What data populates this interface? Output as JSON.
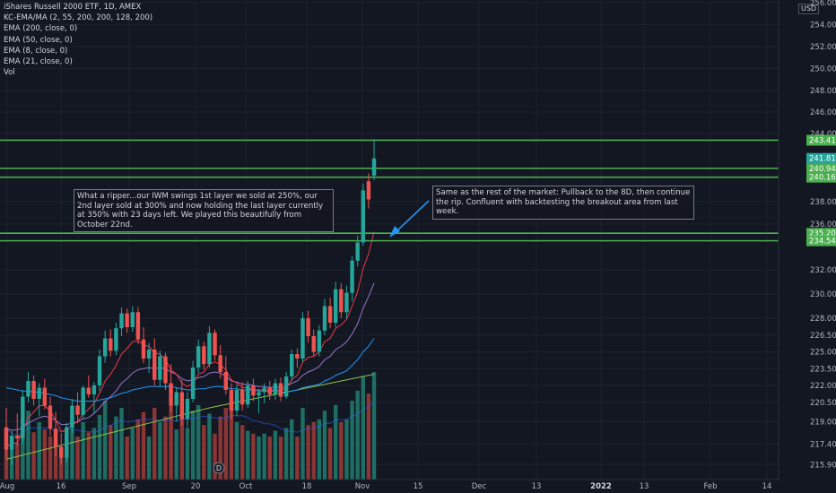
{
  "header": {
    "title": "iShares Russell 2000 ETF, 1D, AMEX",
    "indicators": [
      "KC-EMA/MA (2, 55, 200, 200, 128, 200)",
      "EMA (200, close, 0)",
      "EMA (50, close, 0)",
      "EMA (8, close, 0)",
      "EMA (21, close, 0)",
      "Vol"
    ],
    "currency": "USD"
  },
  "annotations": {
    "note1": "What a ripper...our IWM swings 1st layer we sold at 250%, our 2nd layer sold at 300% and now holding the last layer currently at 350% with 23 days left. We played this beautifully from October 22nd.",
    "note2": "Same as the rest of the market: Pullback to the 8D, then continue the rip. Confluent with backtesting the breakout area from last week."
  },
  "chart_data": {
    "type": "candlestick",
    "y_ticks": [
      "256.00",
      "254.00",
      "252.00",
      "250.00",
      "248.00",
      "246.00",
      "244.00",
      "238.00",
      "236.00",
      "232.00",
      "230.00",
      "228.00",
      "226.50",
      "225.00",
      "223.50",
      "222.00",
      "220.50",
      "219.00",
      "217.40",
      "215.90"
    ],
    "y_tick_values": [
      256.0,
      254.0,
      252.0,
      250.0,
      248.0,
      246.0,
      244.0,
      238.0,
      236.0,
      232.0,
      230.0,
      228.0,
      226.5,
      225.0,
      223.5,
      222.0,
      220.5,
      219.0,
      217.4,
      215.9
    ],
    "x_ticks": [
      "Aug",
      "16",
      "Sep",
      "20",
      "Oct",
      "18",
      "Nov",
      "15",
      "Dec",
      "13",
      "2022",
      "13",
      "Feb",
      "14"
    ],
    "x_ticks_bold": [
      "2022"
    ],
    "horizontal_levels": [
      {
        "label": "243.41",
        "value": 243.41
      },
      {
        "label": "240.94",
        "value": 240.94
      },
      {
        "label": "240.16",
        "value": 240.16
      },
      {
        "label": "235.20",
        "value": 235.2
      },
      {
        "label": "234.54",
        "value": 234.54
      }
    ],
    "last_price": {
      "label": "241.81",
      "value": 241.81
    },
    "dividend_marker": "D",
    "colors": {
      "up": "#26a69a",
      "down": "#ef5350",
      "level": "#4caf50",
      "ema8": "#f23645",
      "ema21": "#9575cd",
      "ema50": "#2196f3",
      "ema200": "#8bc34a",
      "vol_up": "#1e6e63",
      "vol_down": "#8b3535"
    },
    "candles": [
      {
        "o": 218.6,
        "h": 220.0,
        "l": 216.4,
        "c": 217.0
      },
      {
        "o": 217.0,
        "h": 218.4,
        "l": 215.9,
        "c": 218.0
      },
      {
        "o": 218.0,
        "h": 219.6,
        "l": 217.3,
        "c": 217.8
      },
      {
        "o": 217.8,
        "h": 221.6,
        "l": 217.4,
        "c": 221.0
      },
      {
        "o": 221.0,
        "h": 223.2,
        "l": 220.5,
        "c": 222.4
      },
      {
        "o": 222.4,
        "h": 222.9,
        "l": 220.2,
        "c": 220.8
      },
      {
        "o": 220.8,
        "h": 222.2,
        "l": 219.4,
        "c": 221.8
      },
      {
        "o": 221.8,
        "h": 222.6,
        "l": 219.9,
        "c": 220.2
      },
      {
        "o": 220.2,
        "h": 221.0,
        "l": 218.0,
        "c": 218.5
      },
      {
        "o": 218.5,
        "h": 219.7,
        "l": 216.5,
        "c": 217.2
      },
      {
        "o": 217.2,
        "h": 218.2,
        "l": 215.9,
        "c": 216.4
      },
      {
        "o": 216.4,
        "h": 218.9,
        "l": 216.1,
        "c": 218.6
      },
      {
        "o": 218.6,
        "h": 220.8,
        "l": 218.2,
        "c": 220.2
      },
      {
        "o": 220.2,
        "h": 221.4,
        "l": 218.9,
        "c": 219.5
      },
      {
        "o": 219.5,
        "h": 222.0,
        "l": 219.2,
        "c": 221.8
      },
      {
        "o": 221.8,
        "h": 222.9,
        "l": 220.9,
        "c": 221.2
      },
      {
        "o": 221.2,
        "h": 222.3,
        "l": 219.6,
        "c": 222.0
      },
      {
        "o": 222.0,
        "h": 225.2,
        "l": 221.5,
        "c": 224.6
      },
      {
        "o": 224.6,
        "h": 226.9,
        "l": 224.0,
        "c": 226.2
      },
      {
        "o": 226.2,
        "h": 227.0,
        "l": 224.6,
        "c": 225.1
      },
      {
        "o": 225.1,
        "h": 227.6,
        "l": 224.7,
        "c": 227.1
      },
      {
        "o": 227.1,
        "h": 228.9,
        "l": 226.4,
        "c": 228.4
      },
      {
        "o": 228.4,
        "h": 228.8,
        "l": 226.7,
        "c": 227.2
      },
      {
        "o": 227.2,
        "h": 229.0,
        "l": 226.8,
        "c": 228.5
      },
      {
        "o": 228.5,
        "h": 228.9,
        "l": 225.7,
        "c": 226.1
      },
      {
        "o": 226.1,
        "h": 227.2,
        "l": 224.0,
        "c": 224.4
      },
      {
        "o": 224.4,
        "h": 225.8,
        "l": 223.1,
        "c": 225.2
      },
      {
        "o": 225.2,
        "h": 226.2,
        "l": 222.0,
        "c": 222.5
      },
      {
        "o": 222.5,
        "h": 225.1,
        "l": 221.9,
        "c": 224.6
      },
      {
        "o": 224.6,
        "h": 224.9,
        "l": 221.6,
        "c": 222.2
      },
      {
        "o": 222.2,
        "h": 223.9,
        "l": 219.7,
        "c": 220.2
      },
      {
        "o": 220.2,
        "h": 221.8,
        "l": 219.0,
        "c": 221.4
      },
      {
        "o": 221.4,
        "h": 222.5,
        "l": 218.7,
        "c": 219.2
      },
      {
        "o": 219.2,
        "h": 221.4,
        "l": 218.6,
        "c": 220.8
      },
      {
        "o": 220.8,
        "h": 224.2,
        "l": 220.5,
        "c": 223.6
      },
      {
        "o": 223.6,
        "h": 226.1,
        "l": 223.1,
        "c": 225.5
      },
      {
        "o": 225.5,
        "h": 225.9,
        "l": 223.4,
        "c": 223.9
      },
      {
        "o": 223.9,
        "h": 227.3,
        "l": 223.6,
        "c": 226.7
      },
      {
        "o": 226.7,
        "h": 227.0,
        "l": 224.2,
        "c": 224.7
      },
      {
        "o": 224.7,
        "h": 225.6,
        "l": 222.6,
        "c": 223.2
      },
      {
        "o": 223.2,
        "h": 224.6,
        "l": 221.2,
        "c": 221.6
      },
      {
        "o": 221.6,
        "h": 222.2,
        "l": 219.2,
        "c": 219.8
      },
      {
        "o": 219.8,
        "h": 222.1,
        "l": 219.4,
        "c": 221.6
      },
      {
        "o": 221.6,
        "h": 222.3,
        "l": 219.8,
        "c": 220.3
      },
      {
        "o": 220.3,
        "h": 222.4,
        "l": 220.0,
        "c": 222.0
      },
      {
        "o": 222.0,
        "h": 222.6,
        "l": 220.6,
        "c": 221.1
      },
      {
        "o": 221.1,
        "h": 221.7,
        "l": 219.6,
        "c": 221.4
      },
      {
        "o": 221.4,
        "h": 222.2,
        "l": 220.4,
        "c": 221.8
      },
      {
        "o": 221.8,
        "h": 222.4,
        "l": 220.7,
        "c": 221.2
      },
      {
        "o": 221.2,
        "h": 222.6,
        "l": 220.7,
        "c": 222.2
      },
      {
        "o": 222.2,
        "h": 222.7,
        "l": 220.6,
        "c": 221.0
      },
      {
        "o": 221.0,
        "h": 223.2,
        "l": 220.8,
        "c": 222.8
      },
      {
        "o": 222.8,
        "h": 225.2,
        "l": 222.4,
        "c": 224.8
      },
      {
        "o": 224.8,
        "h": 225.3,
        "l": 223.6,
        "c": 224.4
      },
      {
        "o": 224.4,
        "h": 228.5,
        "l": 224.1,
        "c": 228.0
      },
      {
        "o": 228.0,
        "h": 228.6,
        "l": 225.8,
        "c": 226.4
      },
      {
        "o": 226.4,
        "h": 227.0,
        "l": 224.6,
        "c": 225.0
      },
      {
        "o": 225.0,
        "h": 227.4,
        "l": 224.6,
        "c": 226.9
      },
      {
        "o": 226.9,
        "h": 229.6,
        "l": 226.5,
        "c": 229.0
      },
      {
        "o": 229.0,
        "h": 229.7,
        "l": 227.1,
        "c": 227.6
      },
      {
        "o": 227.6,
        "h": 231.0,
        "l": 227.2,
        "c": 230.4
      },
      {
        "o": 230.4,
        "h": 230.9,
        "l": 228.0,
        "c": 228.5
      },
      {
        "o": 228.5,
        "h": 230.7,
        "l": 228.0,
        "c": 230.1
      },
      {
        "o": 230.1,
        "h": 233.2,
        "l": 229.4,
        "c": 232.8
      },
      {
        "o": 232.8,
        "h": 235.0,
        "l": 232.3,
        "c": 234.4
      },
      {
        "o": 234.4,
        "h": 239.6,
        "l": 234.1,
        "c": 239.0
      },
      {
        "o": 239.8,
        "h": 240.5,
        "l": 237.4,
        "c": 238.2
      },
      {
        "o": 240.3,
        "h": 243.5,
        "l": 239.9,
        "c": 241.81
      }
    ],
    "volume_levels": [
      0.35,
      0.3,
      0.26,
      0.42,
      0.48,
      0.33,
      0.4,
      0.35,
      0.3,
      0.26,
      0.23,
      0.36,
      0.42,
      0.3,
      0.4,
      0.33,
      0.36,
      0.45,
      0.55,
      0.38,
      0.44,
      0.5,
      0.3,
      0.36,
      0.42,
      0.47,
      0.3,
      0.5,
      0.4,
      0.44,
      0.52,
      0.35,
      0.46,
      0.36,
      0.48,
      0.52,
      0.38,
      0.46,
      0.32,
      0.44,
      0.5,
      0.58,
      0.4,
      0.38,
      0.34,
      0.32,
      0.3,
      0.32,
      0.3,
      0.34,
      0.3,
      0.36,
      0.42,
      0.3,
      0.5,
      0.38,
      0.4,
      0.42,
      0.48,
      0.36,
      0.52,
      0.4,
      0.42,
      0.55,
      0.62,
      0.72,
      0.6,
      0.75
    ],
    "ema8": [
      217.2,
      217.4,
      217.5,
      218.3,
      219.3,
      219.7,
      220.2,
      220.2,
      219.8,
      219.1,
      218.3,
      218.4,
      218.8,
      219.0,
      219.6,
      219.9,
      220.4,
      221.3,
      222.4,
      223.0,
      223.8,
      224.8,
      225.3,
      225.9,
      226.0,
      225.6,
      225.5,
      224.9,
      224.8,
      224.3,
      223.4,
      223.0,
      222.2,
      221.9,
      222.2,
      223.0,
      223.2,
      223.9,
      224.1,
      223.9,
      223.4,
      222.5,
      222.2,
      221.8,
      221.8,
      221.6,
      221.6,
      221.6,
      221.5,
      221.7,
      221.5,
      221.8,
      222.5,
      222.9,
      224.1,
      224.5,
      224.6,
      225.0,
      225.9,
      226.2,
      227.1,
      227.4,
      227.9,
      229.0,
      230.2,
      232.1,
      233.4,
      235.3
    ],
    "ema21": [
      218.5,
      218.4,
      218.4,
      218.6,
      218.9,
      219.1,
      219.3,
      219.4,
      219.3,
      219.1,
      218.8,
      218.8,
      218.9,
      219.0,
      219.2,
      219.3,
      219.6,
      220.0,
      220.6,
      221.0,
      221.5,
      222.2,
      222.6,
      223.1,
      223.4,
      223.5,
      223.6,
      223.5,
      223.6,
      223.5,
      223.2,
      223.0,
      222.6,
      222.4,
      222.5,
      222.7,
      222.8,
      223.1,
      223.2,
      223.1,
      222.8,
      222.4,
      222.3,
      222.1,
      222.1,
      222.0,
      221.9,
      221.9,
      221.8,
      221.9,
      221.8,
      221.9,
      222.2,
      222.4,
      222.9,
      223.2,
      223.4,
      223.7,
      224.3,
      224.6,
      225.2,
      225.5,
      225.9,
      226.6,
      227.5,
      228.8,
      229.8,
      230.9
    ],
    "ema50": [
      221.8,
      221.7,
      221.6,
      221.5,
      221.5,
      221.4,
      221.4,
      221.3,
      221.2,
      221.1,
      220.9,
      220.8,
      220.7,
      220.6,
      220.6,
      220.6,
      220.6,
      220.7,
      220.8,
      220.9,
      221.1,
      221.3,
      221.4,
      221.6,
      221.7,
      221.8,
      221.9,
      221.9,
      221.9,
      221.9,
      221.9,
      221.8,
      221.7,
      221.6,
      221.6,
      221.7,
      221.7,
      221.8,
      221.9,
      221.9,
      221.8,
      221.7,
      221.7,
      221.6,
      221.6,
      221.6,
      221.5,
      221.5,
      221.5,
      221.5,
      221.4,
      221.4,
      221.5,
      221.6,
      221.8,
      221.9,
      222.0,
      222.1,
      222.4,
      222.6,
      222.9,
      223.1,
      223.3,
      223.8,
      224.3,
      225.0,
      225.5,
      226.2
    ],
    "ema200": [
      216.3,
      216.4,
      216.5,
      216.6,
      216.7,
      216.8,
      216.9,
      217.0,
      217.1,
      217.2,
      217.3,
      217.4,
      217.5,
      217.6,
      217.7,
      217.8,
      217.9,
      218.0,
      218.1,
      218.2,
      218.3,
      218.4,
      218.5,
      218.6,
      218.7,
      218.8,
      218.9,
      219.0,
      219.1,
      219.2,
      219.3,
      219.4,
      219.5,
      219.6,
      219.7,
      219.8,
      219.9,
      220.0,
      220.1,
      220.2,
      220.3,
      220.4,
      220.5,
      220.6,
      220.7,
      220.8,
      220.9,
      221.0,
      221.1,
      221.2,
      221.3,
      221.4,
      221.5,
      221.6,
      221.7,
      221.8,
      221.9,
      222.0,
      222.1,
      222.2,
      222.3,
      222.4,
      222.5,
      222.6,
      222.7,
      222.8,
      222.9,
      223.0
    ]
  }
}
